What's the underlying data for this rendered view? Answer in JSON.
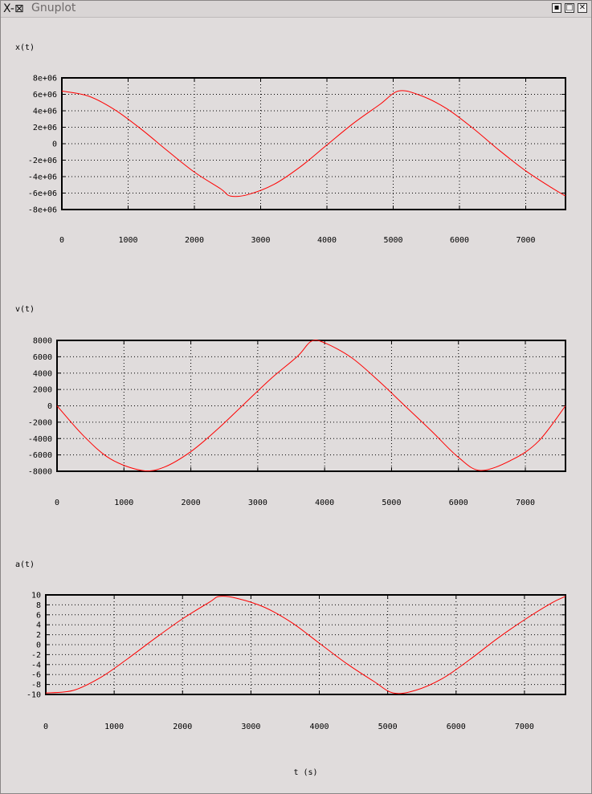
{
  "window": {
    "title": "Gnuplot",
    "icon": "x-app-icon",
    "buttons": [
      {
        "name": "minimize-button",
        "glyph": "▪"
      },
      {
        "name": "maximize-button",
        "glyph": "□"
      },
      {
        "name": "close-button",
        "glyph": "✕"
      }
    ]
  },
  "chart_data": [
    {
      "type": "line",
      "ylabel": "x(t)",
      "x_range": [
        0,
        7600
      ],
      "y_range": [
        -8000000,
        8000000
      ],
      "x_ticks": [
        0,
        1000,
        2000,
        3000,
        4000,
        5000,
        6000,
        7000
      ],
      "x_tick_labels": [
        "0",
        "1000",
        "2000",
        "3000",
        "4000",
        "5000",
        "6000",
        "7000"
      ],
      "y_ticks": [
        -8000000,
        -6000000,
        -4000000,
        -2000000,
        0,
        2000000,
        4000000,
        6000000,
        8000000
      ],
      "y_tick_labels": [
        "-8e+06",
        "-6e+06",
        "-4e+06",
        "-2e+06",
        "0",
        "2e+06",
        "4e+06",
        "6e+06",
        "8e+06"
      ],
      "grid": true,
      "line_color": "#ff0000",
      "series": [
        {
          "x": [
            0,
            400,
            800,
            1200,
            1600,
            2000,
            2400,
            2540,
            2800,
            3200,
            3600,
            4000,
            4400,
            4800,
            5080,
            5400,
            5800,
            6200,
            6600,
            7000,
            7400,
            7600
          ],
          "y": [
            6400000,
            5790000,
            4120000,
            1750000,
            -900000,
            -3450000,
            -5500000,
            -6350000,
            -6200000,
            -4950000,
            -2800000,
            -150000,
            2480000,
            4780000,
            6400000,
            5900000,
            4300000,
            1900000,
            -800000,
            -3300000,
            -5400000,
            -6350000
          ]
        }
      ]
    },
    {
      "type": "line",
      "ylabel": "v(t)",
      "x_range": [
        0,
        7600
      ],
      "y_range": [
        -8000,
        8000
      ],
      "x_ticks": [
        0,
        1000,
        2000,
        3000,
        4000,
        5000,
        6000,
        7000
      ],
      "x_tick_labels": [
        "0",
        "1000",
        "2000",
        "3000",
        "4000",
        "5000",
        "6000",
        "7000"
      ],
      "y_ticks": [
        -8000,
        -6000,
        -4000,
        -2000,
        0,
        2000,
        4000,
        6000,
        8000
      ],
      "y_tick_labels": [
        "-8000",
        "-6000",
        "-4000",
        "-2000",
        "0",
        "2000",
        "4000",
        "6000",
        "8000"
      ],
      "grid": true,
      "line_color": "#ff0000",
      "series": [
        {
          "x": [
            0,
            400,
            800,
            1270,
            1600,
            2000,
            2400,
            2800,
            3200,
            3600,
            3800,
            4000,
            4400,
            4800,
            5200,
            5600,
            6000,
            6330,
            6800,
            7200,
            7600
          ],
          "y": [
            0,
            -3700,
            -6500,
            -7900,
            -7500,
            -5600,
            -2850,
            250,
            3340,
            6100,
            7900,
            7700,
            5900,
            3100,
            0,
            -3100,
            -6300,
            -7900,
            -6600,
            -4300,
            0
          ]
        }
      ]
    },
    {
      "type": "line",
      "ylabel": "a(t)",
      "xlabel": "t (s)",
      "x_range": [
        0,
        7600
      ],
      "y_range": [
        -10,
        10
      ],
      "x_ticks": [
        0,
        1000,
        2000,
        3000,
        4000,
        5000,
        6000,
        7000
      ],
      "x_tick_labels": [
        "0",
        "1000",
        "2000",
        "3000",
        "4000",
        "5000",
        "6000",
        "7000"
      ],
      "y_ticks": [
        -10,
        -8,
        -6,
        -4,
        -2,
        0,
        2,
        4,
        6,
        8,
        10
      ],
      "y_tick_labels": [
        "-10",
        "-8",
        "-6",
        "-4",
        "-2",
        "0",
        "2",
        "4",
        "6",
        "8",
        "10"
      ],
      "grid": true,
      "line_color": "#ff0000",
      "series": [
        {
          "x": [
            0,
            400,
            800,
            1200,
            1600,
            2000,
            2400,
            2540,
            2800,
            3200,
            3600,
            4000,
            4400,
            4800,
            5080,
            5400,
            5800,
            6200,
            6600,
            7000,
            7400,
            7600
          ],
          "y": [
            -9.7,
            -9.2,
            -6.6,
            -2.8,
            1.3,
            5.2,
            8.6,
            9.7,
            9.3,
            7.5,
            4.4,
            0.3,
            -3.8,
            -7.4,
            -9.7,
            -9.2,
            -6.8,
            -3.0,
            1.2,
            5.0,
            8.4,
            9.7
          ]
        }
      ]
    }
  ]
}
